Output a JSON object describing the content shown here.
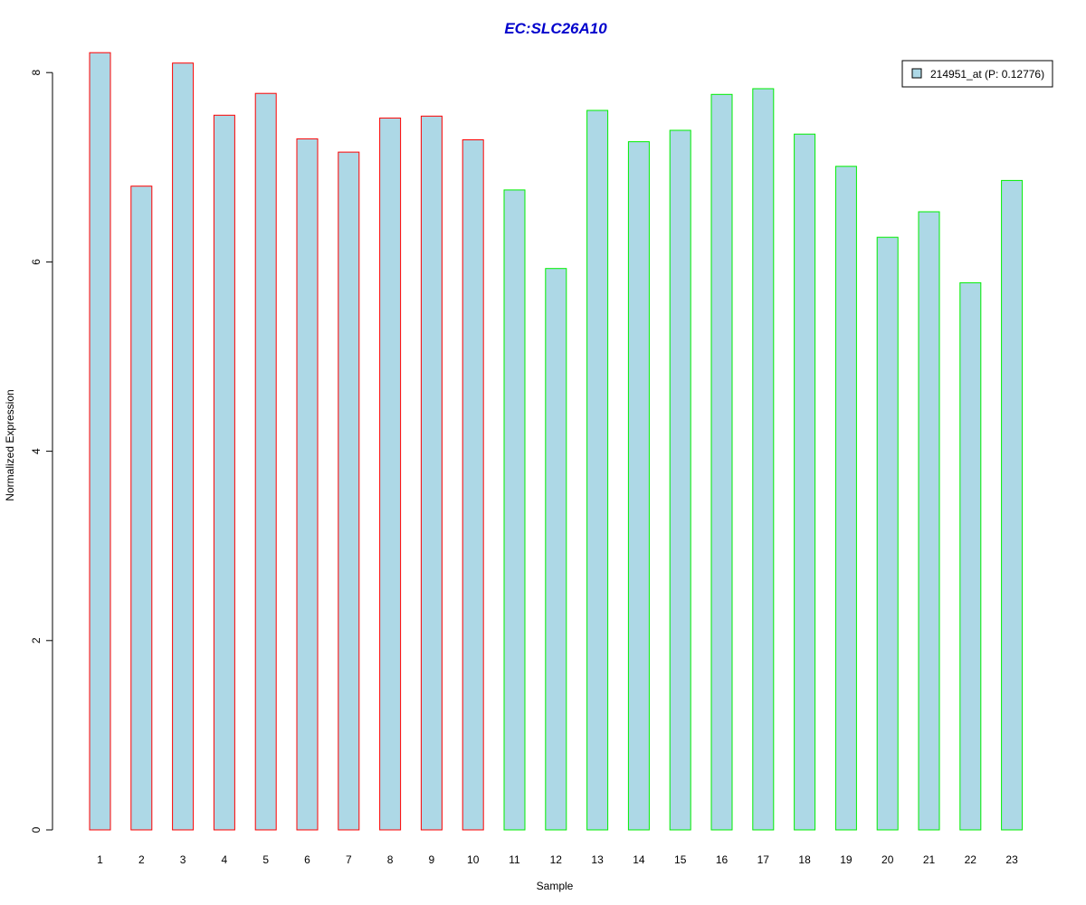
{
  "chart_data": {
    "type": "bar",
    "title": "EC:SLC26A10",
    "xlabel": "Sample",
    "ylabel": "Normalized Expression",
    "ylim": [
      0,
      8.2
    ],
    "yticks": [
      0,
      2,
      4,
      6,
      8
    ],
    "grid": false,
    "legend_position": "top-right",
    "categories": [
      "1",
      "2",
      "3",
      "4",
      "5",
      "6",
      "7",
      "8",
      "9",
      "10",
      "11",
      "12",
      "13",
      "14",
      "15",
      "16",
      "17",
      "18",
      "19",
      "20",
      "21",
      "22",
      "23"
    ],
    "series": [
      {
        "name": "214951_at (P: 0.12776)",
        "values": [
          8.21,
          6.8,
          8.1,
          7.55,
          7.78,
          7.3,
          7.16,
          7.52,
          7.54,
          7.29,
          6.76,
          5.93,
          7.6,
          7.27,
          7.39,
          7.77,
          7.83,
          7.35,
          7.01,
          6.26,
          6.53,
          5.78,
          6.86
        ],
        "fill_color": "#add8e6"
      }
    ],
    "groups": [
      {
        "samples": [
          "1",
          "2",
          "3",
          "4",
          "5",
          "6",
          "7",
          "8",
          "9",
          "10"
        ],
        "border_color": "#ff0000"
      },
      {
        "samples": [
          "11",
          "12",
          "13",
          "14",
          "15",
          "16",
          "17",
          "18",
          "19",
          "20",
          "21",
          "22",
          "23"
        ],
        "border_color": "#00ee00"
      }
    ],
    "colors": {
      "title": "#0000cc",
      "axis": "#000000"
    }
  }
}
